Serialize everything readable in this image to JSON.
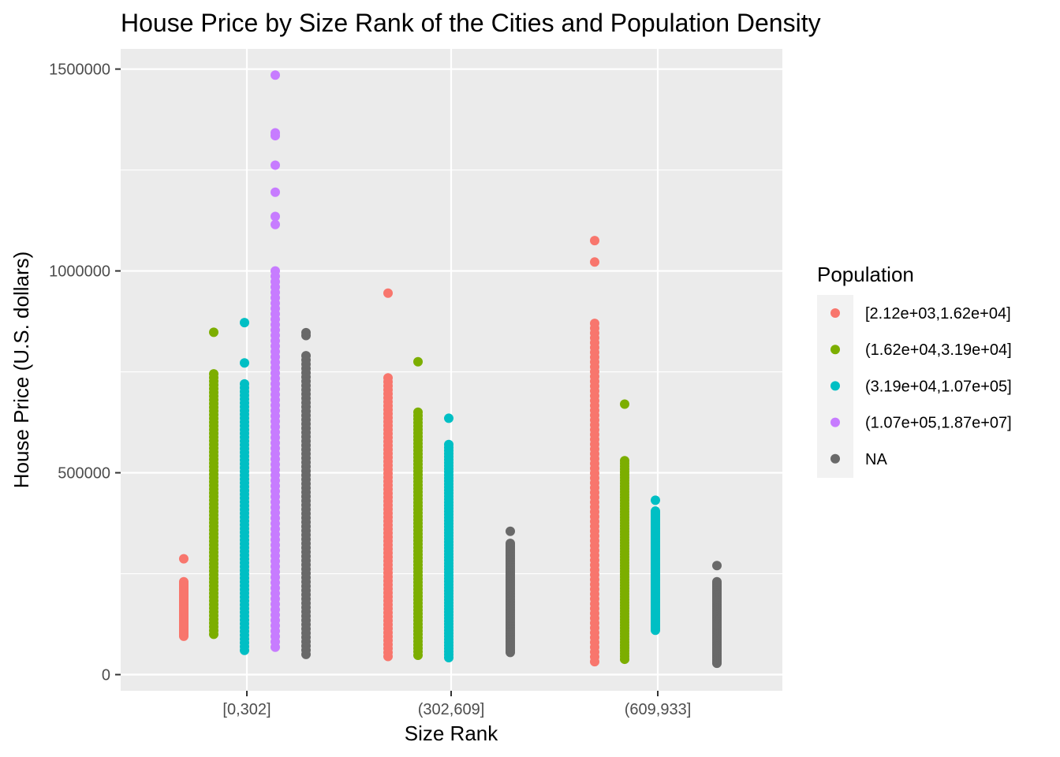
{
  "chart_data": {
    "type": "scatter",
    "title": "House Price by Size Rank of the Cities and Population Density",
    "xlabel": "Size Rank",
    "ylabel": "House Price (U.S. dollars)",
    "categories": [
      "[0,302]",
      "(302,609]",
      "(609,933]"
    ],
    "ylim": [
      -40000,
      1550000
    ],
    "y_ticks": [
      0,
      500000,
      1000000,
      1500000
    ],
    "y_tick_labels": [
      "0",
      "500000",
      "1000000",
      "1500000"
    ],
    "grid": true,
    "legend": {
      "title": "Population",
      "position": "right"
    },
    "series": [
      {
        "name": "[2.12e+03,1.62e+04]",
        "color": "#F8766D",
        "groups": [
          {
            "category": "[0,302]",
            "min": 95000,
            "max": 230000,
            "outliers": [
              287000
            ]
          },
          {
            "category": "(302,609]",
            "min": 45000,
            "max": 735000,
            "outliers": [
              945000
            ]
          },
          {
            "category": "(609,933]",
            "min": 32000,
            "max": 870000,
            "outliers": [
              1022000,
              1075000
            ]
          }
        ]
      },
      {
        "name": "(1.62e+04,3.19e+04]",
        "color": "#7CAE00",
        "groups": [
          {
            "category": "[0,302]",
            "min": 100000,
            "max": 745000,
            "outliers": [
              848000
            ]
          },
          {
            "category": "(302,609]",
            "min": 48000,
            "max": 650000,
            "outliers": [
              775000
            ]
          },
          {
            "category": "(609,933]",
            "min": 38000,
            "max": 530000,
            "outliers": [
              670000
            ]
          }
        ]
      },
      {
        "name": "(3.19e+04,1.07e+05]",
        "color": "#00BFC4",
        "groups": [
          {
            "category": "[0,302]",
            "min": 60000,
            "max": 720000,
            "outliers": [
              772000,
              872000
            ]
          },
          {
            "category": "(302,609]",
            "min": 42000,
            "max": 570000,
            "outliers": [
              635000
            ]
          },
          {
            "category": "(609,933]",
            "min": 110000,
            "max": 405000,
            "outliers": [
              432000
            ]
          }
        ]
      },
      {
        "name": "(1.07e+05,1.87e+07]",
        "color": "#C77CFF",
        "groups": [
          {
            "category": "[0,302]",
            "min": 68000,
            "max": 1000000,
            "outliers": [
              1115000,
              1135000,
              1195000,
              1262000,
              1335000,
              1342000,
              1485000
            ]
          }
        ]
      },
      {
        "name": "NA",
        "color": "#696969",
        "groups": [
          {
            "category": "[0,302]",
            "min": 50000,
            "max": 790000,
            "outliers": [
              840000,
              847000
            ]
          },
          {
            "category": "(302,609]",
            "min": 55000,
            "max": 325000,
            "outliers": [
              355000
            ]
          },
          {
            "category": "(609,933]",
            "min": 28000,
            "max": 230000,
            "outliers": [
              270000
            ]
          }
        ]
      }
    ]
  }
}
